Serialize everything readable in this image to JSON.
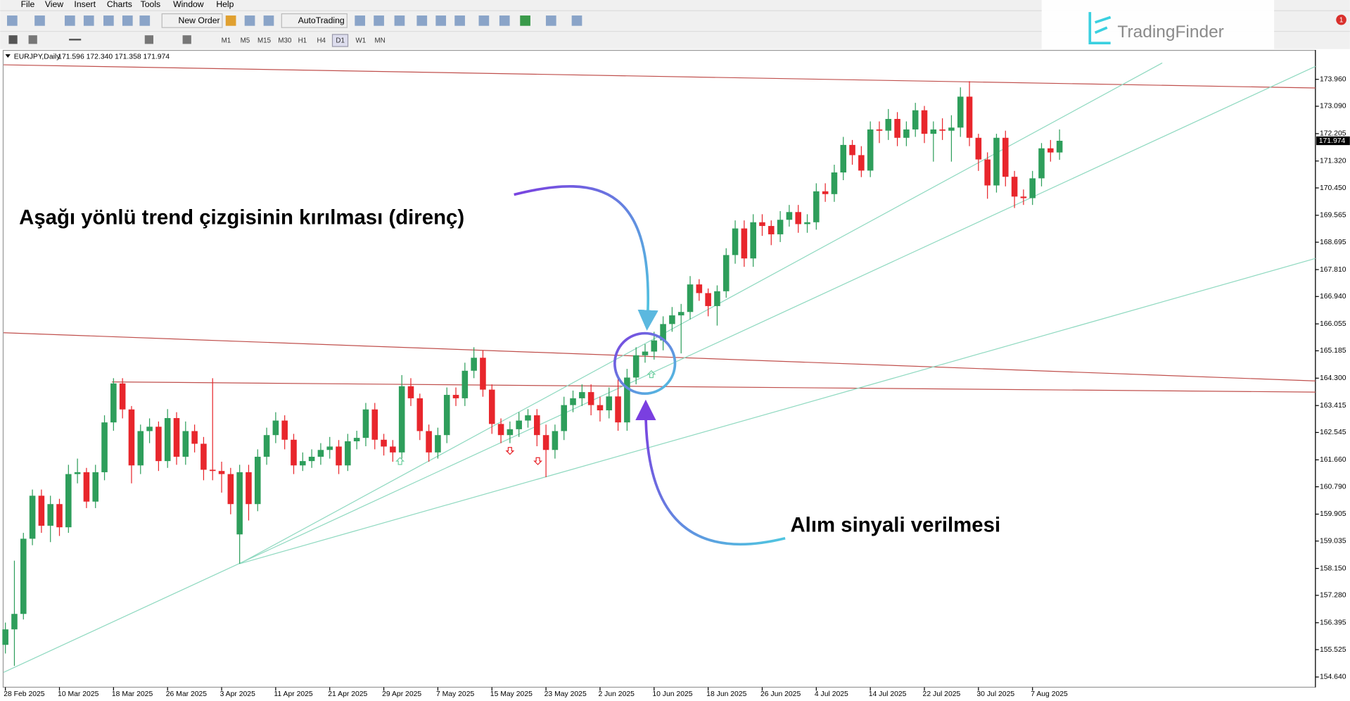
{
  "ui": {
    "menu": [
      "File",
      "View",
      "Insert",
      "Charts",
      "Tools",
      "Window",
      "Help"
    ],
    "new_order": "New Order",
    "autotrading": "AutoTrading",
    "timeframes": [
      "M1",
      "M5",
      "M15",
      "M30",
      "H1",
      "H4",
      "D1",
      "W1",
      "MN"
    ],
    "logo": "TradingFinder",
    "badge": "1"
  },
  "chart_data": {
    "type": "candlestick",
    "title": "EURJPY,Daily",
    "ohlc_text": "171.596 172.340 171.358 171.974",
    "annotations": [
      "Aşağı yönlü trend çizgisinin kırılması (direnç)",
      "Alım sinyali verilmesi"
    ],
    "up_color": "#2e9e5b",
    "down_color": "#e8262c",
    "xlim": [
      -0.2,
      145.4
    ],
    "ylim": [
      154.31,
      174.91
    ],
    "xticks": [
      {
        "value": 0,
        "label": "28 Feb 2025"
      },
      {
        "value": 6,
        "label": "10 Mar 2025"
      },
      {
        "value": 12,
        "label": "18 Mar 2025"
      },
      {
        "value": 18,
        "label": "26 Mar 2025"
      },
      {
        "value": 24,
        "label": "3 Apr 2025"
      },
      {
        "value": 30,
        "label": "11 Apr 2025"
      },
      {
        "value": 36,
        "label": "21 Apr 2025"
      },
      {
        "value": 42,
        "label": "29 Apr 2025"
      },
      {
        "value": 48,
        "label": "7 May 2025"
      },
      {
        "value": 54,
        "label": "15 May 2025"
      },
      {
        "value": 60,
        "label": "23 May 2025"
      },
      {
        "value": 66,
        "label": "2 Jun 2025"
      },
      {
        "value": 72,
        "label": "10 Jun 2025"
      },
      {
        "value": 78,
        "label": "18 Jun 2025"
      },
      {
        "value": 84,
        "label": "26 Jun 2025"
      },
      {
        "value": 90,
        "label": "4 Jul 2025"
      },
      {
        "value": 96,
        "label": "14 Jul 2025"
      },
      {
        "value": 102,
        "label": "22 Jul 2025"
      },
      {
        "value": 108,
        "label": "30 Jul 2025"
      },
      {
        "value": 114,
        "label": "7 Aug 2025"
      }
    ],
    "yticks": [
      {
        "value": 173.96,
        "label": "173.960"
      },
      {
        "value": 173.09,
        "label": "173.090"
      },
      172.205,
      {
        "value": 171.32,
        "label": "171.320"
      },
      {
        "value": 170.45,
        "label": "170.450"
      },
      169.565,
      168.695,
      {
        "value": 167.81,
        "label": "167.810"
      },
      {
        "value": 166.94,
        "label": "166.940"
      },
      166.055,
      165.185,
      {
        "value": 164.3,
        "label": "164.300"
      },
      163.415,
      162.545,
      {
        "value": 161.66,
        "label": "161.660"
      },
      {
        "value": 160.79,
        "label": "160.790"
      },
      159.905,
      159.035,
      {
        "value": 158.15,
        "label": "158.150"
      },
      {
        "value": 157.28,
        "label": "157.280"
      },
      156.395,
      155.525,
      {
        "value": 154.64,
        "label": "154.640"
      }
    ],
    "current_price": 171.974,
    "open": [
      155.68,
      156.18,
      156.68,
      159.11,
      160.5,
      159.53,
      160.23,
      159.48,
      161.2,
      161.26,
      160.31,
      161.26,
      162.87,
      164.13,
      163.29,
      161.48,
      162.59,
      162.73,
      161.62,
      163.01,
      161.76,
      162.59,
      162.18,
      161.34,
      161.3,
      161.2,
      159.25,
      161.26,
      160.23,
      161.76,
      162.46,
      162.93,
      162.31,
      161.48,
      161.62,
      161.76,
      161.98,
      162.09,
      161.48,
      162.26,
      162.37,
      163.29,
      162.31,
      162.09,
      161.9,
      164.04,
      163.65,
      162.59,
      161.9,
      162.46,
      163.76,
      163.65,
      164.54,
      164.96,
      163.93,
      162.82,
      162.46,
      162.65,
      162.93,
      163.1,
      162.46,
      161.98,
      162.59,
      163.43,
      163.65,
      163.85,
      163.43,
      163.26,
      163.71,
      162.87,
      164.32,
      165.04,
      165.16,
      165.52,
      166.05,
      166.33,
      166.44,
      167.33,
      167.05,
      166.63,
      167.11,
      168.28,
      169.14,
      168.17,
      169.34,
      169.22,
      168.95,
      169.42,
      169.67,
      169.28,
      169.34,
      170.34,
      170.25,
      170.95,
      171.84,
      171.51,
      171.01,
      172.34,
      172.3,
      172.68,
      172.07,
      172.34,
      172.96,
      172.2,
      172.34,
      172.3,
      172.4,
      173.4,
      172.07,
      171.37,
      170.53,
      172.07,
      170.81,
      170.17,
      170.12,
      170.76,
      171.73,
      171.596
    ],
    "high": [
      156.4,
      158.4,
      159.3,
      160.7,
      160.7,
      160.5,
      160.4,
      161.5,
      161.7,
      161.4,
      161.5,
      163.1,
      164.3,
      164.3,
      163.4,
      162.8,
      163.0,
      162.9,
      163.3,
      163.2,
      162.9,
      162.8,
      162.4,
      164.3,
      161.6,
      161.4,
      161.5,
      161.5,
      162.0,
      162.7,
      163.2,
      163.1,
      162.5,
      161.9,
      162.0,
      162.2,
      162.4,
      162.3,
      162.5,
      162.6,
      163.5,
      163.5,
      162.5,
      162.3,
      164.4,
      164.3,
      163.8,
      162.8,
      162.7,
      164.0,
      164.0,
      164.8,
      165.3,
      165.2,
      164.1,
      163.0,
      162.9,
      163.2,
      163.3,
      163.3,
      162.8,
      162.8,
      163.7,
      163.9,
      164.1,
      164.1,
      163.7,
      164.0,
      164.3,
      164.6,
      165.3,
      165.4,
      165.8,
      166.3,
      166.6,
      166.7,
      167.6,
      167.5,
      167.2,
      167.3,
      168.5,
      169.4,
      169.4,
      169.6,
      169.6,
      169.4,
      169.7,
      169.9,
      169.9,
      169.6,
      170.6,
      170.6,
      171.2,
      172.1,
      172.0,
      171.8,
      172.6,
      172.6,
      173.0,
      172.9,
      172.6,
      173.2,
      173.1,
      172.6,
      172.7,
      172.8,
      173.7,
      173.9,
      172.2,
      171.6,
      172.2,
      172.3,
      171.0,
      170.4,
      171.0,
      171.9,
      172.0,
      172.34
    ],
    "low": [
      155.4,
      155.0,
      156.5,
      158.9,
      159.3,
      159.0,
      159.2,
      159.3,
      160.9,
      160.1,
      160.1,
      161.0,
      162.6,
      163.0,
      160.9,
      161.2,
      162.2,
      161.3,
      161.4,
      161.5,
      161.5,
      161.9,
      161.0,
      161.0,
      160.6,
      159.9,
      158.3,
      159.7,
      160.0,
      161.5,
      162.2,
      162.0,
      161.2,
      161.3,
      161.4,
      161.5,
      161.7,
      161.2,
      161.3,
      162.0,
      162.1,
      162.0,
      161.8,
      161.6,
      161.7,
      163.4,
      162.3,
      161.6,
      161.7,
      162.2,
      163.4,
      163.4,
      164.3,
      163.7,
      162.5,
      162.2,
      162.2,
      162.4,
      162.7,
      162.1,
      161.1,
      161.7,
      162.3,
      163.2,
      163.4,
      163.1,
      162.9,
      163.0,
      162.6,
      162.6,
      164.1,
      164.8,
      164.9,
      165.2,
      165.8,
      165.1,
      166.2,
      166.8,
      166.3,
      166.0,
      166.9,
      168.0,
      167.9,
      167.9,
      168.9,
      168.6,
      168.7,
      169.2,
      169.0,
      169.0,
      169.1,
      170.0,
      170.0,
      170.7,
      171.2,
      170.8,
      170.8,
      171.9,
      172.0,
      171.8,
      171.8,
      172.1,
      171.9,
      171.3,
      172.0,
      171.3,
      172.1,
      171.8,
      171.0,
      170.1,
      170.3,
      170.5,
      169.8,
      169.9,
      169.9,
      170.5,
      171.3,
      171.358
    ],
    "close": [
      156.18,
      156.68,
      159.11,
      160.5,
      159.53,
      160.23,
      159.48,
      161.2,
      161.26,
      160.31,
      161.26,
      162.87,
      164.13,
      163.29,
      161.48,
      162.59,
      162.73,
      161.62,
      163.01,
      161.76,
      162.59,
      162.18,
      161.34,
      161.3,
      161.2,
      160.23,
      161.26,
      160.23,
      161.76,
      162.46,
      162.93,
      162.31,
      161.48,
      161.62,
      161.76,
      161.98,
      162.09,
      161.48,
      162.26,
      162.37,
      163.29,
      162.31,
      162.09,
      161.9,
      164.04,
      163.65,
      162.59,
      161.9,
      162.46,
      163.76,
      163.65,
      164.54,
      164.96,
      163.93,
      162.82,
      162.46,
      162.65,
      162.93,
      163.1,
      162.46,
      161.98,
      162.59,
      163.43,
      163.65,
      163.85,
      163.43,
      163.26,
      163.71,
      162.87,
      164.32,
      165.04,
      165.16,
      165.52,
      166.05,
      166.33,
      166.44,
      167.33,
      167.05,
      166.63,
      167.11,
      168.28,
      169.14,
      168.17,
      169.34,
      169.22,
      168.95,
      169.42,
      169.67,
      169.28,
      169.34,
      170.34,
      170.25,
      170.95,
      171.84,
      171.51,
      171.01,
      172.34,
      172.3,
      172.68,
      172.07,
      172.34,
      172.96,
      172.2,
      172.34,
      172.3,
      172.4,
      173.4,
      172.07,
      171.37,
      170.53,
      172.07,
      170.81,
      170.17,
      170.12,
      170.76,
      171.73,
      171.596,
      171.974
    ],
    "trendlines": [
      {
        "x1": -0.2,
        "y1": 174.43,
        "x2": 145.4,
        "y2": 173.68,
        "color": "#c0504d"
      },
      {
        "x1": -0.2,
        "y1": 165.77,
        "x2": 145.4,
        "y2": 164.21,
        "color": "#c0504d"
      },
      {
        "x1": 11.83,
        "y1": 164.18,
        "x2": 145.4,
        "y2": 163.85,
        "color": "#c0504d"
      },
      {
        "x1": -0.2,
        "y1": 154.79,
        "x2": 145.4,
        "y2": 174.38,
        "color": "#8fd9c0"
      },
      {
        "x1": 25.97,
        "y1": 158.3,
        "x2": 128.4,
        "y2": 174.49,
        "color": "#8fd9c0"
      },
      {
        "x1": 25.97,
        "y1": 158.3,
        "x2": 145.4,
        "y2": 168.17,
        "color": "#8fd9c0"
      }
    ],
    "signals": [
      {
        "x": 43.8,
        "price": 161.62,
        "direction": "up"
      },
      {
        "x": 56.0,
        "price": 161.95,
        "direction": "down"
      },
      {
        "x": 59.1,
        "price": 161.62,
        "direction": "down"
      },
      {
        "x": 71.7,
        "price": 164.43,
        "direction": "up"
      }
    ]
  }
}
